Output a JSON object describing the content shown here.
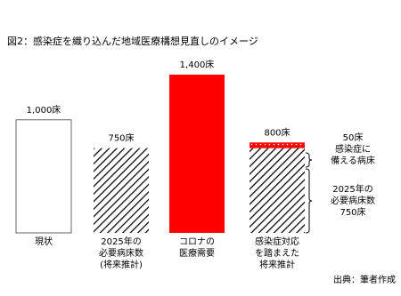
{
  "chart_data": {
    "type": "bar",
    "title": "図2：感染症を織り込んだ地域医療構想見直しのイメージ",
    "categories": [
      [
        "現状"
      ],
      [
        "2025年の",
        "必要病床数",
        "(将来推計)"
      ],
      [
        "コロナの",
        "医療需要"
      ],
      [
        "感染症対応",
        "を踏まえた",
        "将来推計"
      ]
    ],
    "series": [
      {
        "color": "#000000",
        "fills": [
          "outline",
          "hatch",
          "solid",
          "hatch"
        ],
        "values": [
          1000,
          750,
          1400,
          750
        ]
      },
      {
        "color": "#ff0000",
        "fills": [
          null,
          null,
          null,
          "dots"
        ],
        "values": [
          null,
          null,
          null,
          50
        ]
      }
    ],
    "solid_color": "#ff0000",
    "totals": [
      1000,
      750,
      1400,
      800
    ],
    "total_labels": [
      "1,000床",
      "750床",
      "1,400床",
      "800床"
    ],
    "ylim": [
      0,
      1400
    ],
    "annotations": [
      [
        "50床",
        "感染症に",
        "備える病床"
      ],
      [
        "2025年の",
        "必要病床数",
        "750床"
      ]
    ],
    "source": "出典：筆者作成"
  }
}
